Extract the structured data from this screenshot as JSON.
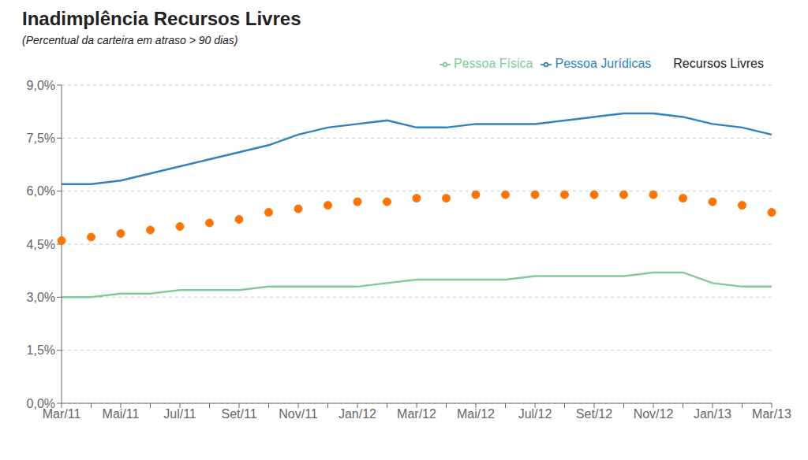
{
  "chart_data": {
    "type": "line",
    "title": "Inadimplência Recursos Livres",
    "subtitle": "(Percentual da carteira em atraso > 90 dias)",
    "categories": [
      "Mar/11",
      null,
      "Mai/11",
      null,
      "Jul/11",
      null,
      "Set/11",
      null,
      "Nov/11",
      null,
      "Jan/12",
      null,
      "Mar/12",
      null,
      "Mai/12",
      null,
      "Jul/12",
      null,
      "Set/12",
      null,
      "Nov/12",
      null,
      "Jan/13",
      null,
      "Mar/13"
    ],
    "series": [
      {
        "name": "Pessoa Jurídicas",
        "type": "line",
        "color": "#3182bd",
        "values": [
          0.062,
          0.062,
          0.063,
          0.065,
          0.067,
          0.069,
          0.071,
          0.073,
          0.076,
          0.078,
          0.079,
          0.08,
          0.078,
          0.078,
          0.079,
          0.079,
          0.079,
          0.08,
          0.081,
          0.082,
          0.082,
          0.081,
          0.079,
          0.078,
          0.076
        ]
      },
      {
        "name": "Recursos Livres",
        "type": "scatter",
        "marker": "circle",
        "color": "#ff7300",
        "values": [
          0.046,
          0.047,
          0.048,
          0.049,
          0.05,
          0.051,
          0.052,
          0.054,
          0.055,
          0.056,
          0.057,
          0.057,
          0.058,
          0.058,
          0.059,
          0.059,
          0.059,
          0.059,
          0.059,
          0.059,
          0.059,
          0.058,
          0.057,
          0.056,
          0.054
        ]
      },
      {
        "name": "Pessoa Física",
        "type": "line",
        "color": "#82ca9d",
        "values": [
          0.03,
          0.03,
          0.031,
          0.031,
          0.032,
          0.032,
          0.032,
          0.033,
          0.033,
          0.033,
          0.033,
          0.034,
          0.035,
          0.035,
          0.035,
          0.035,
          0.036,
          0.036,
          0.036,
          0.036,
          0.037,
          0.037,
          0.034,
          0.033,
          0.033
        ]
      }
    ],
    "ylim": [
      0.0,
      0.09
    ],
    "yticks": [
      {
        "value": 0.0,
        "label": "0,0%"
      },
      {
        "value": 0.015,
        "label": "1,5%"
      },
      {
        "value": 0.03,
        "label": "3,0%"
      },
      {
        "value": 0.045,
        "label": "4,5%"
      },
      {
        "value": 0.06,
        "label": "6,0%"
      },
      {
        "value": 0.075,
        "label": "7,5%"
      },
      {
        "value": 0.09,
        "label": "9,0%"
      }
    ],
    "grid": true,
    "legend": "upper right"
  }
}
